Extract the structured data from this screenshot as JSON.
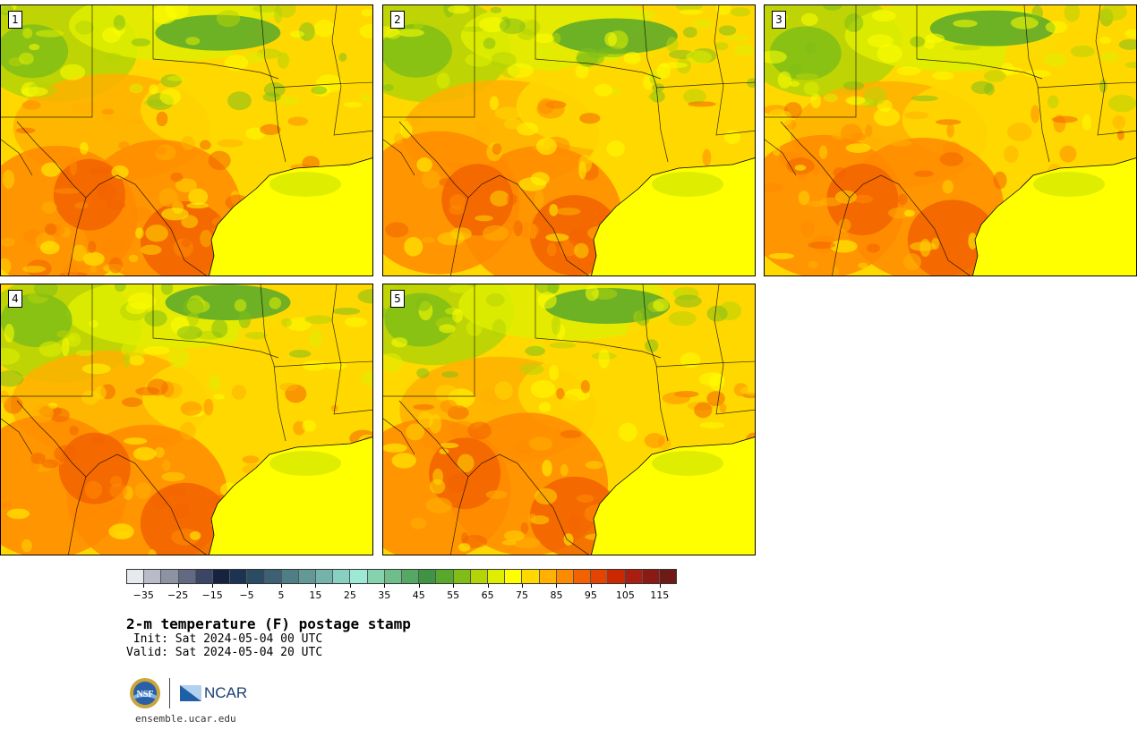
{
  "members": [
    {
      "label": "1",
      "seed": 11
    },
    {
      "label": "2",
      "seed": 23
    },
    {
      "label": "3",
      "seed": 37
    },
    {
      "label": "4",
      "seed": 41
    },
    {
      "label": "5",
      "seed": 53
    }
  ],
  "colorbar": {
    "colors": [
      "#e6e9ee",
      "#b9bcc8",
      "#8e93a4",
      "#626983",
      "#3b4565",
      "#16233f",
      "#1c3452",
      "#2b4b63",
      "#3b6172",
      "#4f7e87",
      "#629896",
      "#73b3aa",
      "#88d1c2",
      "#9ce9d6",
      "#85d3ae",
      "#6fbd88",
      "#54a864",
      "#3f9443",
      "#58a82b",
      "#80be17",
      "#b4d405",
      "#dfee00",
      "#ffff00",
      "#ffd800",
      "#ffb000",
      "#ff8a00",
      "#f26300",
      "#e54400",
      "#c92800",
      "#a81e10",
      "#8c1a14",
      "#6e1a16"
    ],
    "tick_labels": [
      "−35",
      "−25",
      "−15",
      "−5",
      "5",
      "15",
      "25",
      "35",
      "45",
      "55",
      "65",
      "75",
      "85",
      "95",
      "105",
      "115"
    ],
    "tick_values": [
      -35,
      -25,
      -15,
      -5,
      5,
      15,
      25,
      35,
      45,
      55,
      65,
      75,
      85,
      95,
      105,
      115
    ],
    "min": -40,
    "max": 120
  },
  "title": "2-m temperature (F) postage stamp",
  "init": " Init: Sat 2024-05-04 00 UTC",
  "valid": "Valid: Sat 2024-05-04 20 UTC",
  "logos": {
    "nsf": "NSF",
    "ncar": "NCAR"
  },
  "site": "ensemble.ucar.edu"
}
